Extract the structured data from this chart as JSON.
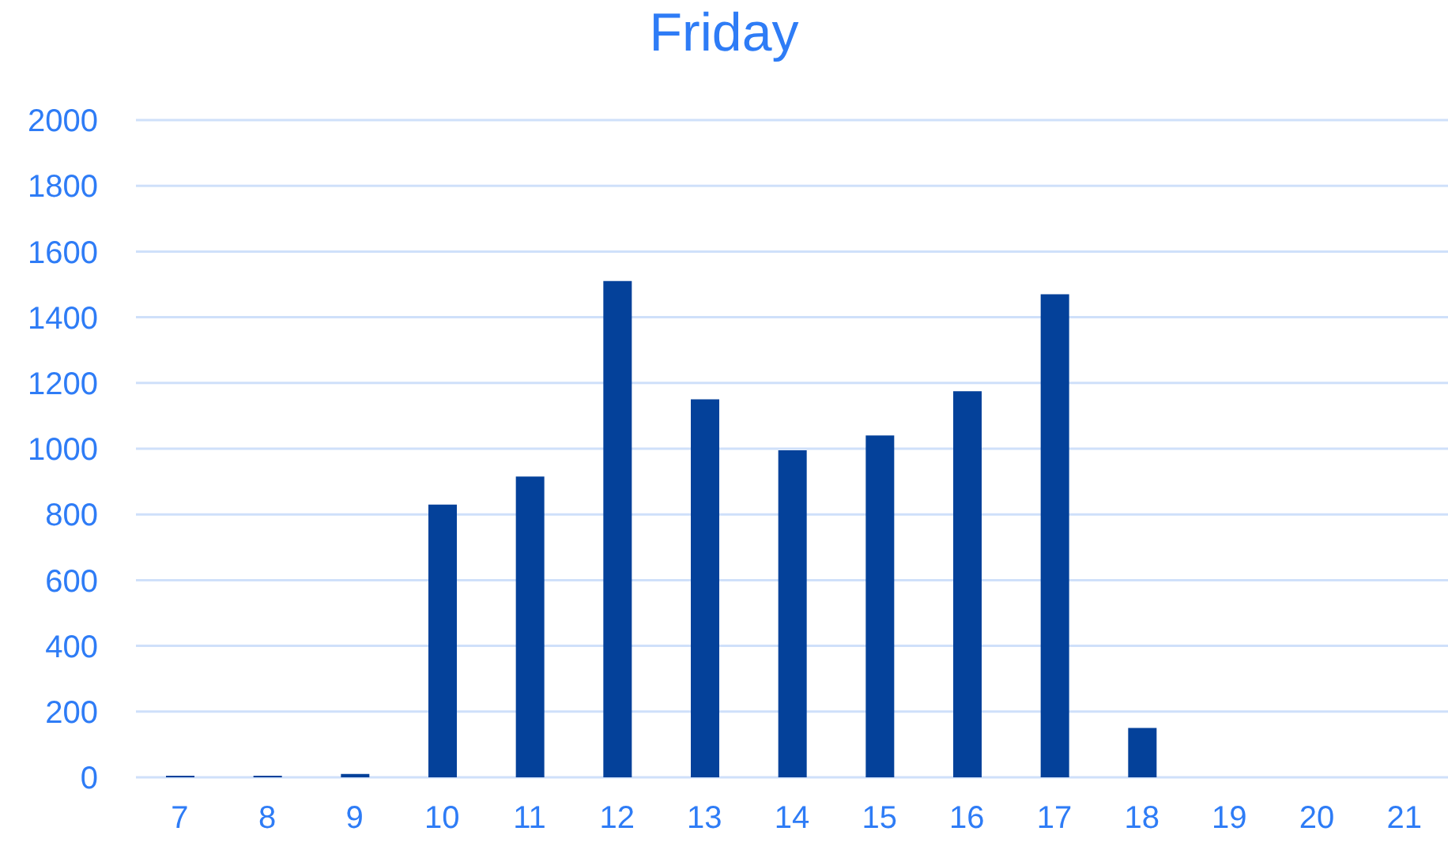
{
  "chart_data": {
    "type": "bar",
    "title": "Friday",
    "categories": [
      "7",
      "8",
      "9",
      "10",
      "11",
      "12",
      "13",
      "14",
      "15",
      "16",
      "17",
      "18",
      "19",
      "20",
      "21"
    ],
    "values": [
      5,
      5,
      10,
      830,
      915,
      1510,
      1150,
      995,
      1040,
      1175,
      1470,
      150,
      0,
      0,
      0
    ],
    "color": "#04419a",
    "ylim": [
      0,
      2000
    ],
    "yticks": [
      0,
      200,
      400,
      600,
      800,
      1000,
      1200,
      1400,
      1600,
      1800,
      2000
    ],
    "grid": "y"
  }
}
